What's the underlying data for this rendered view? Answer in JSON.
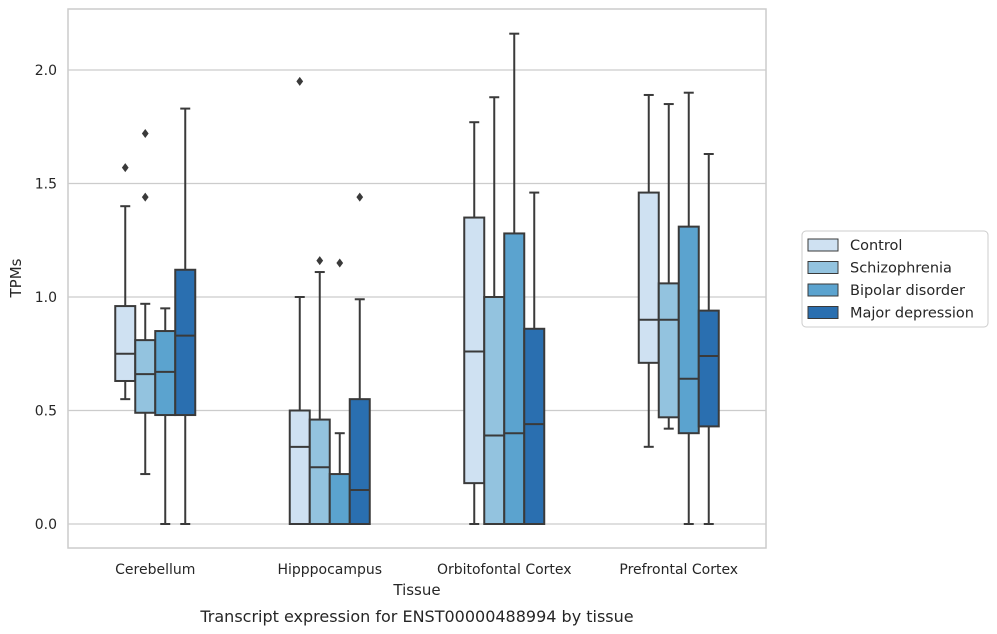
{
  "caption": "Transcript expression for ENST00000488994 by tissue",
  "chart_data": {
    "type": "box",
    "xlabel": "Tissue",
    "ylabel": "TPMs",
    "ylim": [
      -0.1,
      2.28
    ],
    "yticks": [
      0.0,
      0.5,
      1.0,
      1.5,
      2.0
    ],
    "ytick_labels": [
      "0.0",
      "0.5",
      "1.0",
      "1.5",
      "2.0"
    ],
    "grid": "horizontal",
    "legend_position": "right",
    "categories": [
      "Cerebellum",
      "Hipppocampus",
      "Orbitofontal Cortex",
      "Prefrontal Cortex"
    ],
    "series": [
      {
        "name": "Control",
        "color": "#cfe1f2",
        "boxes": [
          {
            "whislo": 0.55,
            "q1": 0.63,
            "med": 0.75,
            "q3": 0.96,
            "whishi": 1.4,
            "fliers": [
              1.57
            ]
          },
          {
            "whislo": 0.0,
            "q1": 0.0,
            "med": 0.34,
            "q3": 0.5,
            "whishi": 1.0,
            "fliers": [
              1.95
            ]
          },
          {
            "whislo": 0.0,
            "q1": 0.18,
            "med": 0.76,
            "q3": 1.35,
            "whishi": 1.77,
            "fliers": []
          },
          {
            "whislo": 0.34,
            "q1": 0.71,
            "med": 0.9,
            "q3": 1.46,
            "whishi": 1.89,
            "fliers": []
          }
        ]
      },
      {
        "name": "Schizophrenia",
        "color": "#93c3df",
        "boxes": [
          {
            "whislo": 0.22,
            "q1": 0.49,
            "med": 0.66,
            "q3": 0.81,
            "whishi": 0.97,
            "fliers": [
              1.44,
              1.72
            ]
          },
          {
            "whislo": 0.0,
            "q1": 0.0,
            "med": 0.25,
            "q3": 0.46,
            "whishi": 1.11,
            "fliers": [
              1.16
            ]
          },
          {
            "whislo": 0.0,
            "q1": 0.0,
            "med": 0.39,
            "q3": 1.0,
            "whishi": 1.88,
            "fliers": []
          },
          {
            "whislo": 0.42,
            "q1": 0.47,
            "med": 0.9,
            "q3": 1.06,
            "whishi": 1.85,
            "fliers": []
          }
        ]
      },
      {
        "name": "Bipolar disorder",
        "color": "#5ba3cf",
        "boxes": [
          {
            "whislo": 0.0,
            "q1": 0.48,
            "med": 0.67,
            "q3": 0.85,
            "whishi": 0.95,
            "fliers": []
          },
          {
            "whislo": 0.0,
            "q1": 0.0,
            "med": 0.0,
            "q3": 0.22,
            "whishi": 0.4,
            "fliers": [
              1.15
            ]
          },
          {
            "whislo": 0.0,
            "q1": 0.0,
            "med": 0.4,
            "q3": 1.28,
            "whishi": 2.16,
            "fliers": []
          },
          {
            "whislo": 0.0,
            "q1": 0.4,
            "med": 0.64,
            "q3": 1.31,
            "whishi": 1.9,
            "fliers": []
          }
        ]
      },
      {
        "name": "Major depression",
        "color": "#2a6fb0",
        "boxes": [
          {
            "whislo": 0.0,
            "q1": 0.48,
            "med": 0.83,
            "q3": 1.12,
            "whishi": 1.83,
            "fliers": []
          },
          {
            "whislo": 0.0,
            "q1": 0.0,
            "med": 0.15,
            "q3": 0.55,
            "whishi": 0.99,
            "fliers": [
              1.44
            ]
          },
          {
            "whislo": 0.0,
            "q1": 0.0,
            "med": 0.44,
            "q3": 0.86,
            "whishi": 1.46,
            "fliers": []
          },
          {
            "whislo": 0.0,
            "q1": 0.43,
            "med": 0.74,
            "q3": 0.94,
            "whishi": 1.63,
            "fliers": []
          }
        ]
      }
    ]
  }
}
